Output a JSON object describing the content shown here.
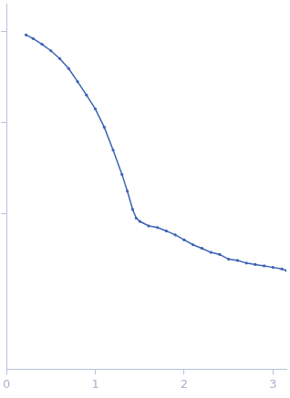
{
  "chart_data": {
    "type": "scatter",
    "color": "#3b63b5",
    "marker": "circle",
    "log": "y",
    "grid": false,
    "tick_labels": "x",
    "x": [
      0.22,
      0.3,
      0.4,
      0.5,
      0.6,
      0.7,
      0.8,
      0.9,
      1.0,
      1.1,
      1.2,
      1.3,
      1.36,
      1.42,
      1.46,
      1.5,
      1.6,
      1.7,
      1.8,
      1.9,
      2.0,
      2.1,
      2.2,
      2.3,
      2.4,
      2.5,
      2.6,
      2.7,
      2.8,
      2.9,
      3.0,
      3.1,
      3.15
    ],
    "values": [
      0.91,
      0.83,
      0.72,
      0.61,
      0.5,
      0.39,
      0.28,
      0.2,
      0.141,
      0.089,
      0.05,
      0.027,
      0.0178,
      0.0112,
      0.009,
      0.0083,
      0.0074,
      0.0071,
      0.0065,
      0.0059,
      0.0052,
      0.0046,
      0.0042,
      0.0038,
      0.0036,
      0.0032,
      0.0031,
      0.0029,
      0.0028,
      0.0027,
      0.0026,
      0.0025,
      0.0024
    ],
    "xlim": [
      0,
      3.15
    ],
    "xticks": [
      0,
      1,
      2,
      3
    ],
    "ylim": [
      0.0002,
      2
    ],
    "yticks": [
      0.01,
      0.1,
      1
    ]
  }
}
